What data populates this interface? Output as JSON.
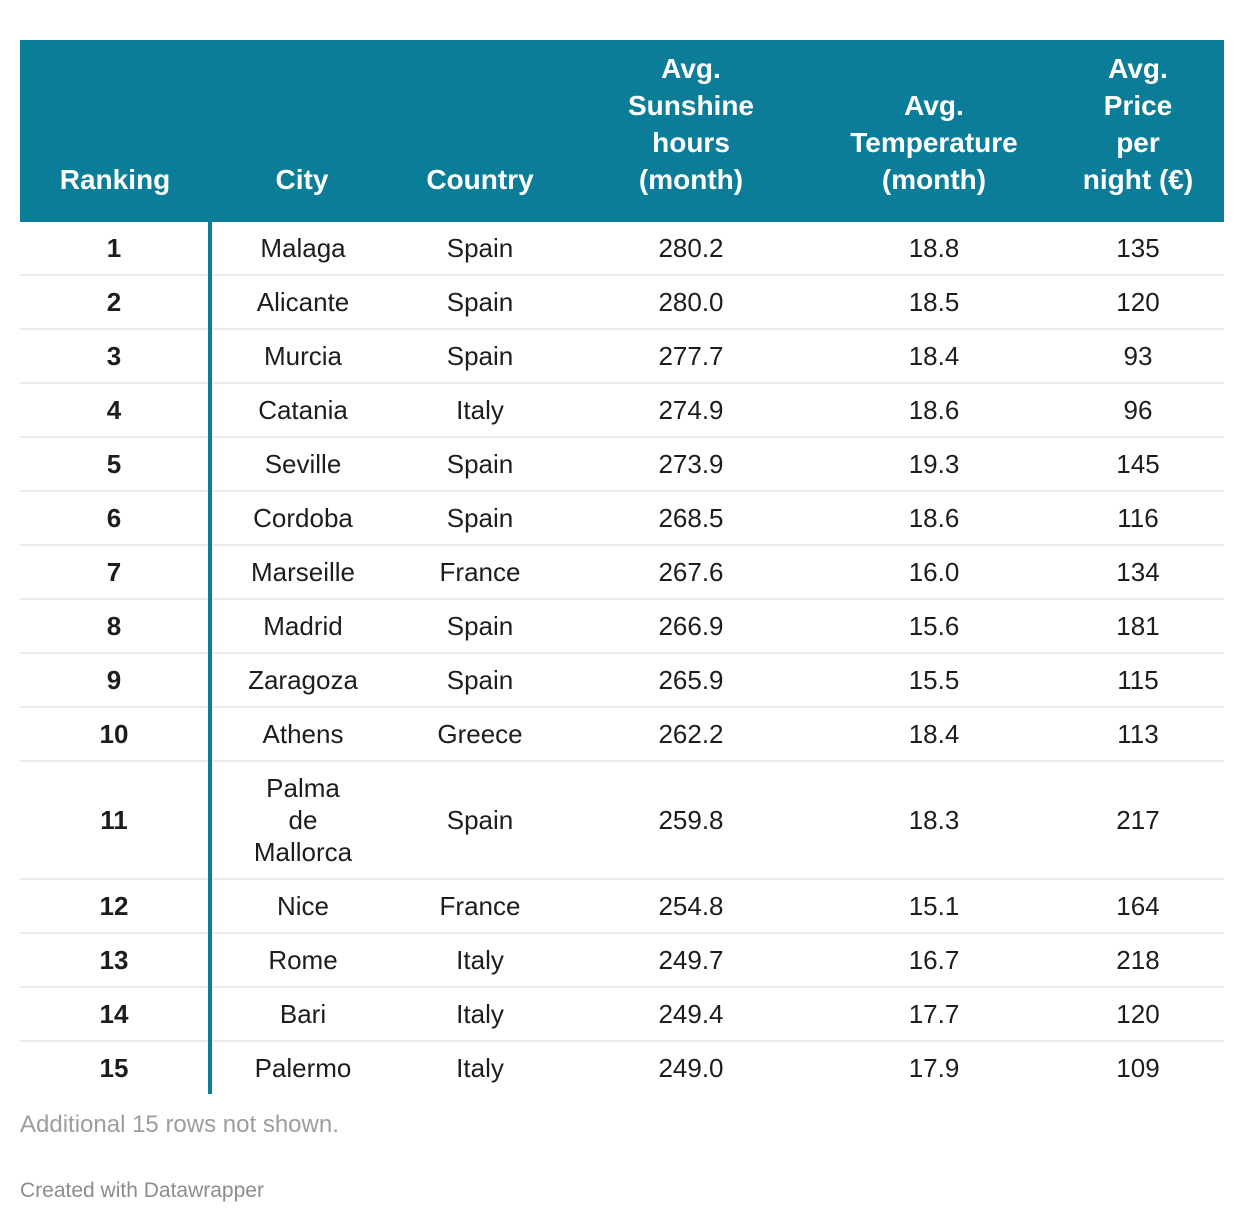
{
  "theme": {
    "accent_color": "#0b7d98",
    "header_text_color": "#ffffff",
    "body_text_color": "#1d1d1d",
    "divider_color": "#ececec",
    "note_text_color": "#9d9d9d",
    "credit_text_color": "#8c8c8c"
  },
  "table": {
    "header": {
      "ranking": "Ranking",
      "city": "City",
      "country": "Country",
      "sunshine": "Avg.\nSunshine\nhours\n(month)",
      "temperature": "Avg.\nTemperature\n(month)",
      "price": "Avg.\nPrice\nper\nnight (€)"
    },
    "rows": [
      {
        "ranking": "1",
        "city": "Malaga",
        "country": "Spain",
        "sunshine": "280.2",
        "temperature": "18.8",
        "price": "135"
      },
      {
        "ranking": "2",
        "city": "Alicante",
        "country": "Spain",
        "sunshine": "280.0",
        "temperature": "18.5",
        "price": "120"
      },
      {
        "ranking": "3",
        "city": "Murcia",
        "country": "Spain",
        "sunshine": "277.7",
        "temperature": "18.4",
        "price": "93"
      },
      {
        "ranking": "4",
        "city": "Catania",
        "country": "Italy",
        "sunshine": "274.9",
        "temperature": "18.6",
        "price": "96"
      },
      {
        "ranking": "5",
        "city": "Seville",
        "country": "Spain",
        "sunshine": "273.9",
        "temperature": "19.3",
        "price": "145"
      },
      {
        "ranking": "6",
        "city": "Cordoba",
        "country": "Spain",
        "sunshine": "268.5",
        "temperature": "18.6",
        "price": "116"
      },
      {
        "ranking": "7",
        "city": "Marseille",
        "country": "France",
        "sunshine": "267.6",
        "temperature": "16.0",
        "price": "134"
      },
      {
        "ranking": "8",
        "city": "Madrid",
        "country": "Spain",
        "sunshine": "266.9",
        "temperature": "15.6",
        "price": "181"
      },
      {
        "ranking": "9",
        "city": "Zaragoza",
        "country": "Spain",
        "sunshine": "265.9",
        "temperature": "15.5",
        "price": "115"
      },
      {
        "ranking": "10",
        "city": "Athens",
        "country": "Greece",
        "sunshine": "262.2",
        "temperature": "18.4",
        "price": "113"
      },
      {
        "ranking": "11",
        "city": "Palma\nde\nMallorca",
        "country": "Spain",
        "sunshine": "259.8",
        "temperature": "18.3",
        "price": "217"
      },
      {
        "ranking": "12",
        "city": "Nice",
        "country": "France",
        "sunshine": "254.8",
        "temperature": "15.1",
        "price": "164"
      },
      {
        "ranking": "13",
        "city": "Rome",
        "country": "Italy",
        "sunshine": "249.7",
        "temperature": "16.7",
        "price": "218"
      },
      {
        "ranking": "14",
        "city": "Bari",
        "country": "Italy",
        "sunshine": "249.4",
        "temperature": "17.7",
        "price": "120"
      },
      {
        "ranking": "15",
        "city": "Palermo",
        "country": "Italy",
        "sunshine": "249.0",
        "temperature": "17.9",
        "price": "109"
      }
    ]
  },
  "footer": {
    "note": "Additional 15 rows not shown.",
    "credit": "Created with Datawrapper"
  },
  "chart_data": {
    "type": "table",
    "columns": [
      "Ranking",
      "City",
      "Country",
      "Avg. Sunshine hours (month)",
      "Avg. Temperature (month)",
      "Avg. Price per night (€)"
    ],
    "rows": [
      [
        1,
        "Malaga",
        "Spain",
        280.2,
        18.8,
        135
      ],
      [
        2,
        "Alicante",
        "Spain",
        280.0,
        18.5,
        120
      ],
      [
        3,
        "Murcia",
        "Spain",
        277.7,
        18.4,
        93
      ],
      [
        4,
        "Catania",
        "Italy",
        274.9,
        18.6,
        96
      ],
      [
        5,
        "Seville",
        "Spain",
        273.9,
        19.3,
        145
      ],
      [
        6,
        "Cordoba",
        "Spain",
        268.5,
        18.6,
        116
      ],
      [
        7,
        "Marseille",
        "France",
        267.6,
        16.0,
        134
      ],
      [
        8,
        "Madrid",
        "Spain",
        266.9,
        15.6,
        181
      ],
      [
        9,
        "Zaragoza",
        "Spain",
        265.9,
        15.5,
        115
      ],
      [
        10,
        "Athens",
        "Greece",
        262.2,
        18.4,
        113
      ],
      [
        11,
        "Palma de Mallorca",
        "Spain",
        259.8,
        18.3,
        217
      ],
      [
        12,
        "Nice",
        "France",
        254.8,
        15.1,
        164
      ],
      [
        13,
        "Rome",
        "Italy",
        249.7,
        16.7,
        218
      ],
      [
        14,
        "Bari",
        "Italy",
        249.4,
        17.7,
        120
      ],
      [
        15,
        "Palermo",
        "Italy",
        249.0,
        17.9,
        109
      ]
    ],
    "footnote": "Additional 15 rows not shown.",
    "layout_hints": {
      "header_background": "#0b7d98",
      "ranking_column_divider": true,
      "grid": "horizontal-only"
    }
  }
}
